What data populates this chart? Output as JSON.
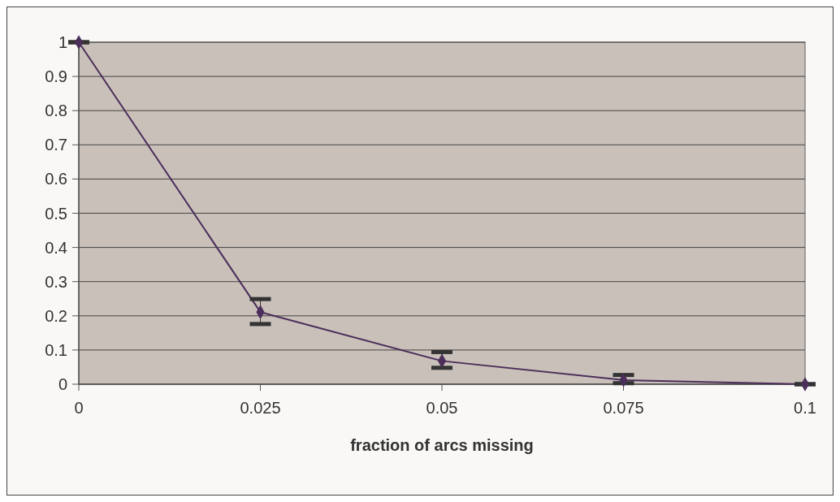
{
  "chart_data": {
    "type": "line",
    "xlabel": "fraction of arcs missing",
    "x": [
      0,
      0.025,
      0.05,
      0.075,
      0.1
    ],
    "series": [
      {
        "color": "#4b2e5a",
        "values": [
          1,
          0.211,
          0.068,
          0.012,
          0
        ],
        "errors": [
          [
            1,
            1
          ],
          [
            0.176,
            0.249
          ],
          [
            0.048,
            0.094
          ],
          [
            0.003,
            0.027
          ],
          [
            0,
            0
          ]
        ]
      }
    ],
    "xlim": [
      0,
      0.1
    ],
    "xticks": [
      0,
      0.025,
      0.05,
      0.075,
      0.1
    ],
    "ylim": [
      0,
      1
    ],
    "yticks": [
      0,
      0.1,
      0.2,
      0.3,
      0.4,
      0.5,
      0.6,
      0.7,
      0.8,
      0.9,
      1
    ],
    "grid": "y",
    "marker": "diamond",
    "line_style": "solid"
  }
}
